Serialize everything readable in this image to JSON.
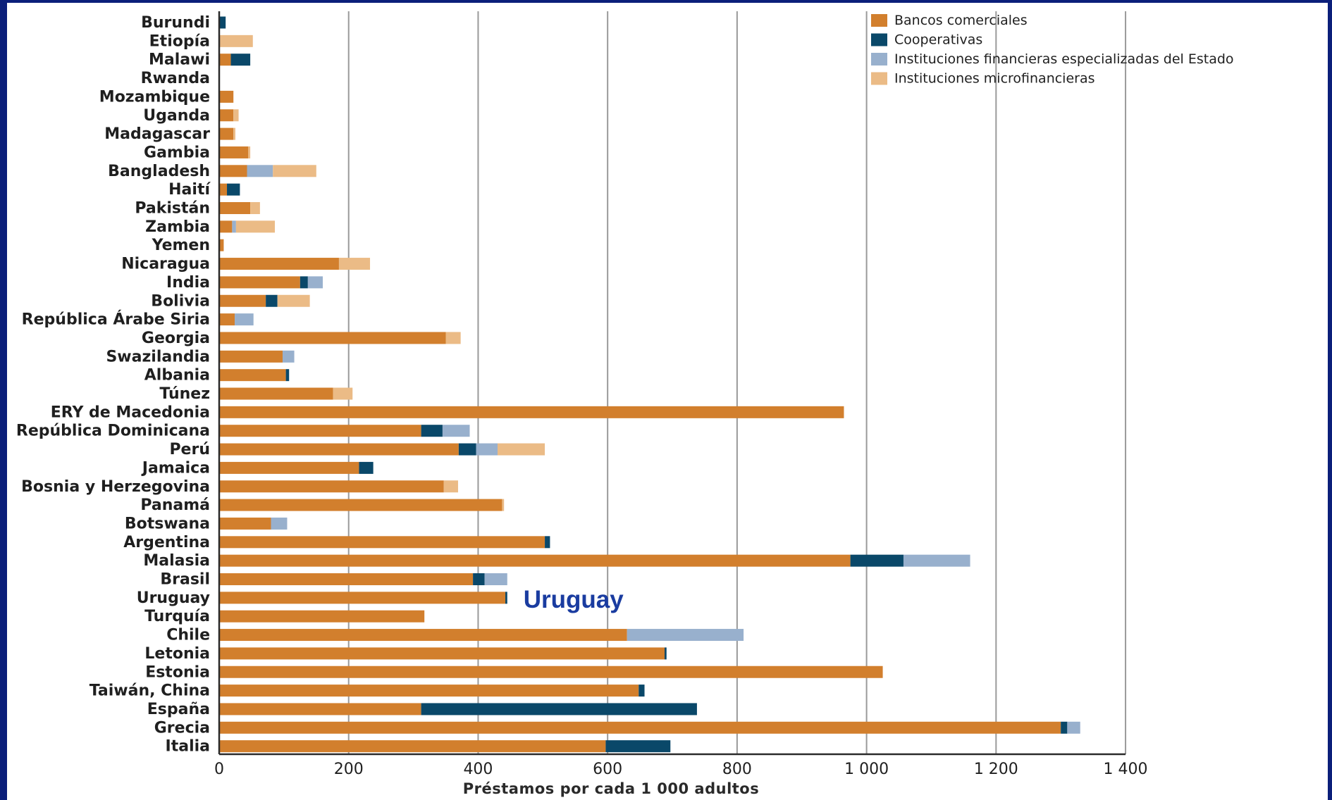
{
  "chart_data": {
    "type": "bar",
    "orientation": "horizontal",
    "stacked": true,
    "xlabel": "Préstamos por cada 1 000 adultos",
    "xlim": [
      0,
      1400
    ],
    "xticks": [
      0,
      200,
      400,
      600,
      800,
      1000,
      1200,
      1400
    ],
    "xtick_labels": [
      "0",
      "200",
      "400",
      "600",
      "800",
      "1 000",
      "1 200",
      "1 400"
    ],
    "grid": "vertical",
    "legend_position": "top-right",
    "categories": [
      "Burundi",
      "Etiopía",
      "Malawi",
      "Rwanda",
      "Mozambique",
      "Uganda",
      "Madagascar",
      "Gambia",
      "Bangladesh",
      "Haití",
      "Pakistán",
      "Zambia",
      "Yemen",
      "Nicaragua",
      "India",
      "Bolivia",
      "República Árabe Siria",
      "Georgia",
      "Swazilandia",
      "Albania",
      "Túnez",
      "ERY de Macedonia",
      "República Dominicana",
      "Perú",
      "Jamaica",
      "Bosnia y Herzegovina",
      "Panamá",
      "Botswana",
      "Argentina",
      "Malasia",
      "Brasil",
      "Uruguay",
      "Turquía",
      "Chile",
      "Letonia",
      "Estonia",
      "Taiwán, China",
      "España",
      "Grecia",
      "Italia"
    ],
    "series": [
      {
        "name": "Bancos comerciales",
        "color": "#d27f2d",
        "values": [
          0,
          0,
          18,
          0,
          22,
          22,
          22,
          45,
          43,
          12,
          48,
          20,
          7,
          185,
          125,
          72,
          24,
          350,
          98,
          103,
          176,
          965,
          312,
          370,
          216,
          347,
          437,
          80,
          503,
          975,
          392,
          442,
          317,
          630,
          688,
          1025,
          648,
          312,
          1300,
          597
        ]
      },
      {
        "name": "Cooperativas",
        "color": "#0a4869",
        "values": [
          10,
          0,
          30,
          0,
          0,
          0,
          0,
          0,
          0,
          20,
          0,
          0,
          0,
          0,
          12,
          18,
          0,
          0,
          0,
          5,
          0,
          0,
          33,
          27,
          22,
          0,
          0,
          0,
          8,
          82,
          18,
          3,
          0,
          0,
          3,
          0,
          9,
          426,
          10,
          100
        ]
      },
      {
        "name": "Instituciones financieras especializadas del Estado",
        "color": "#98b0cd",
        "values": [
          0,
          0,
          0,
          0,
          0,
          0,
          0,
          0,
          40,
          0,
          0,
          6,
          0,
          0,
          23,
          0,
          29,
          0,
          18,
          0,
          0,
          0,
          42,
          33,
          0,
          0,
          0,
          25,
          0,
          103,
          35,
          0,
          0,
          180,
          0,
          0,
          0,
          0,
          20,
          0
        ]
      },
      {
        "name": "Instituciones microfinancieras",
        "color": "#ebbb86",
        "values": [
          0,
          52,
          0,
          0,
          0,
          8,
          3,
          3,
          67,
          0,
          15,
          60,
          0,
          48,
          0,
          50,
          0,
          23,
          0,
          0,
          30,
          0,
          0,
          73,
          0,
          22,
          3,
          0,
          0,
          0,
          0,
          0,
          0,
          0,
          0,
          0,
          0,
          0,
          0,
          0
        ]
      }
    ],
    "annotations": [
      {
        "text": "Uruguay",
        "category": "Uruguay",
        "at_value": 470,
        "color": "#1a3ca0"
      }
    ]
  }
}
